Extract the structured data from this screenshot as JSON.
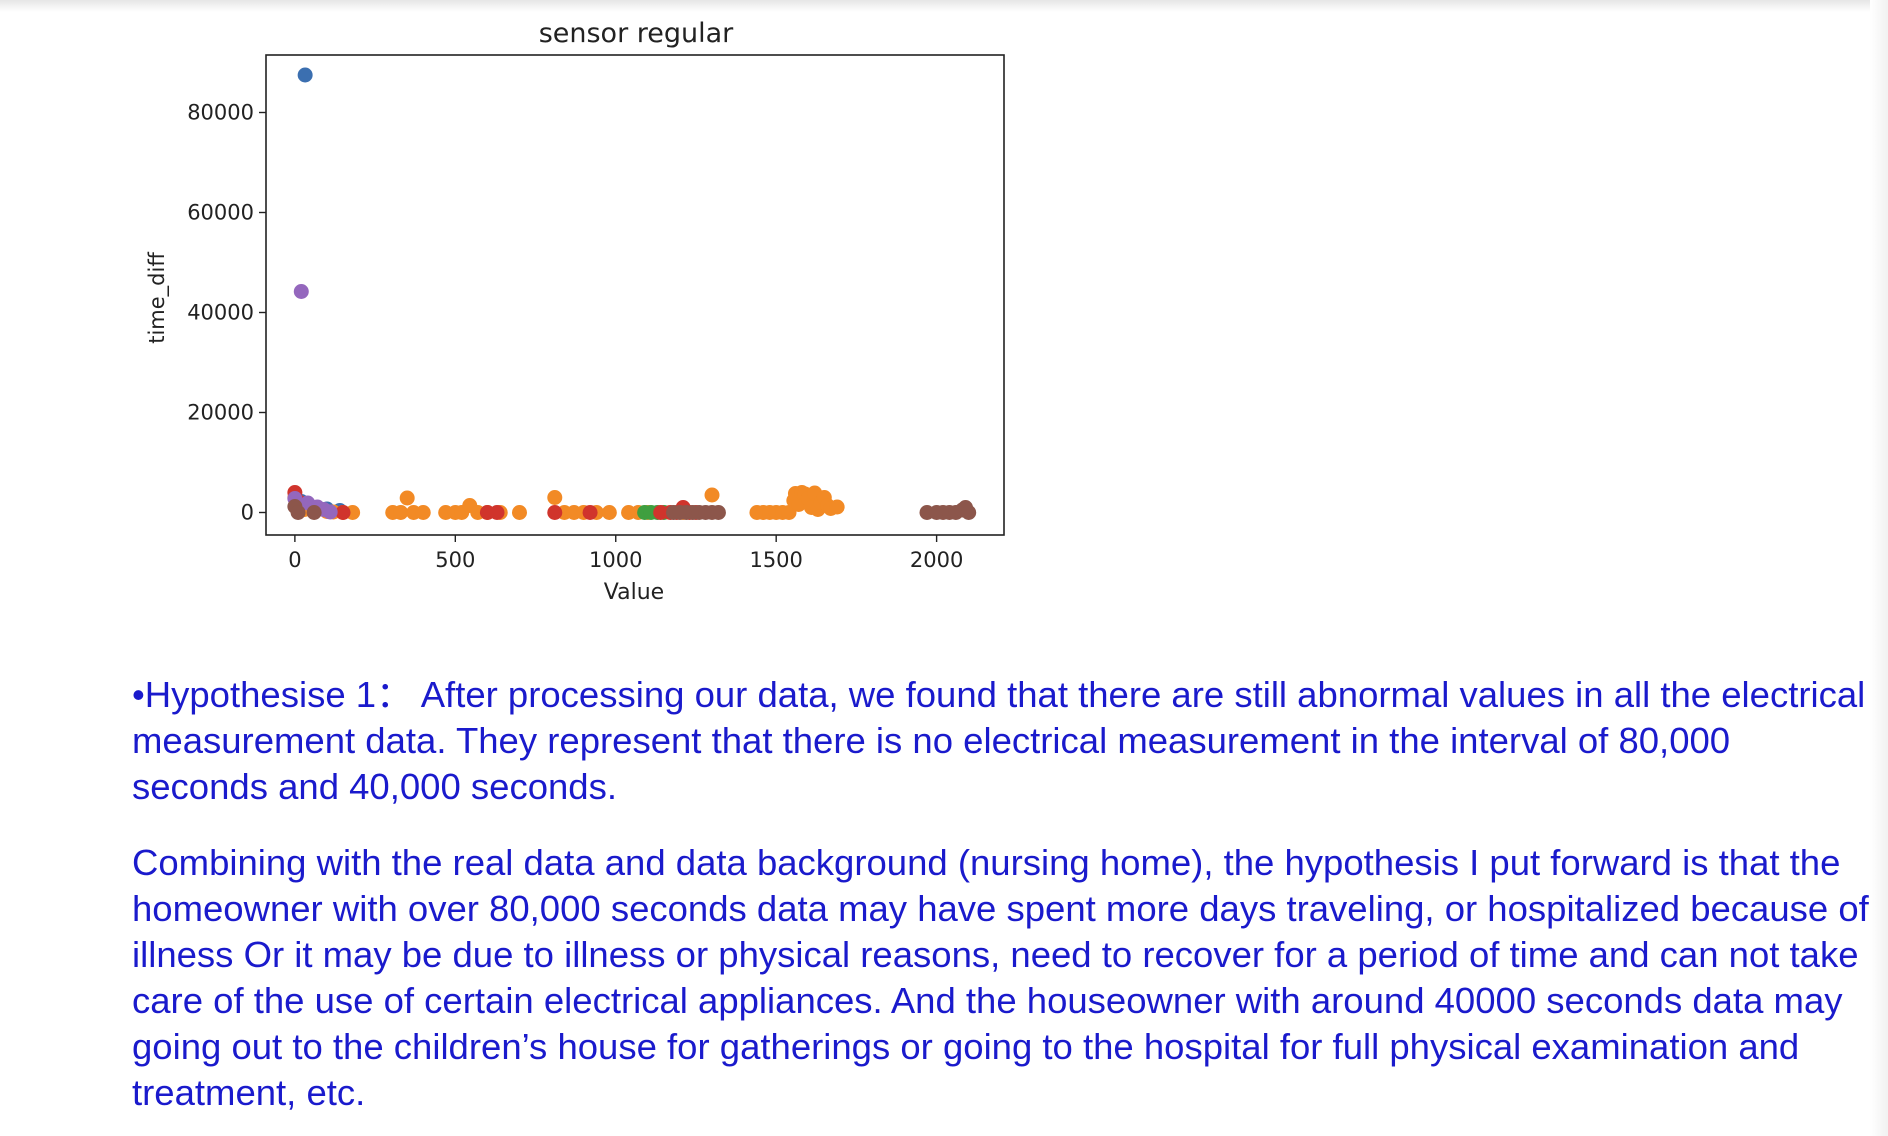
{
  "chart_data": {
    "type": "scatter",
    "title": "sensor regular",
    "xlabel": "Value",
    "ylabel": "time_diff",
    "xlim": [
      -90,
      2210
    ],
    "ylim": [
      -4500,
      91500
    ],
    "xticks": [
      0,
      500,
      1000,
      1500,
      2000
    ],
    "yticks": [
      0,
      20000,
      40000,
      60000,
      80000
    ],
    "xtick_labels": [
      "0",
      "500",
      "1000",
      "1500",
      "2000"
    ],
    "ytick_labels": [
      "0",
      "20000",
      "40000",
      "60000",
      "80000"
    ],
    "grid": false,
    "series": [
      {
        "color": "#3b6fb0",
        "points": [
          [
            32,
            87500
          ],
          [
            20,
            2200
          ],
          [
            60,
            900
          ],
          [
            100,
            700
          ],
          [
            140,
            400
          ],
          [
            10,
            300
          ]
        ]
      },
      {
        "color": "#f28a25",
        "points": [
          [
            0,
            3000
          ],
          [
            30,
            600
          ],
          [
            100,
            200
          ],
          [
            120,
            100
          ],
          [
            150,
            0
          ],
          [
            180,
            0
          ],
          [
            305,
            0
          ],
          [
            330,
            0
          ],
          [
            350,
            2900
          ],
          [
            370,
            0
          ],
          [
            400,
            0
          ],
          [
            470,
            0
          ],
          [
            500,
            0
          ],
          [
            520,
            0
          ],
          [
            545,
            1400
          ],
          [
            570,
            0
          ],
          [
            600,
            0
          ],
          [
            640,
            0
          ],
          [
            700,
            0
          ],
          [
            810,
            3000
          ],
          [
            840,
            0
          ],
          [
            870,
            0
          ],
          [
            900,
            0
          ],
          [
            940,
            0
          ],
          [
            980,
            0
          ],
          [
            1040,
            0
          ],
          [
            1070,
            0
          ],
          [
            1100,
            0
          ],
          [
            1210,
            0
          ],
          [
            1300,
            3500
          ],
          [
            1440,
            0
          ],
          [
            1460,
            0
          ],
          [
            1480,
            0
          ],
          [
            1500,
            0
          ],
          [
            1520,
            0
          ],
          [
            1540,
            0
          ],
          [
            1555,
            2400
          ],
          [
            1560,
            3800
          ],
          [
            1570,
            1600
          ],
          [
            1580,
            4000
          ],
          [
            1590,
            3700
          ],
          [
            1600,
            2800
          ],
          [
            1610,
            1000
          ],
          [
            1620,
            3900
          ],
          [
            1630,
            600
          ],
          [
            1640,
            2000
          ],
          [
            1650,
            3000
          ],
          [
            1660,
            1400
          ],
          [
            1670,
            800
          ],
          [
            1690,
            1100
          ]
        ]
      },
      {
        "color": "#3f9f3f",
        "points": [
          [
            1090,
            0
          ],
          [
            1110,
            0
          ],
          [
            1130,
            0
          ],
          [
            1150,
            0
          ]
        ]
      },
      {
        "color": "#d0342c",
        "points": [
          [
            0,
            4000
          ],
          [
            15,
            2000
          ],
          [
            150,
            0
          ],
          [
            600,
            0
          ],
          [
            630,
            0
          ],
          [
            810,
            0
          ],
          [
            920,
            0
          ],
          [
            1140,
            0
          ],
          [
            1170,
            0
          ],
          [
            1190,
            0
          ],
          [
            1210,
            1000
          ],
          [
            1230,
            0
          ],
          [
            1250,
            0
          ]
        ]
      },
      {
        "color": "#9467bd",
        "points": [
          [
            20,
            44200
          ],
          [
            0,
            2800
          ],
          [
            40,
            1900
          ],
          [
            70,
            1100
          ],
          [
            90,
            600
          ],
          [
            110,
            100
          ]
        ]
      },
      {
        "color": "#8c564b",
        "points": [
          [
            0,
            1200
          ],
          [
            10,
            0
          ],
          [
            60,
            0
          ],
          [
            1180,
            0
          ],
          [
            1200,
            0
          ],
          [
            1220,
            0
          ],
          [
            1240,
            0
          ],
          [
            1260,
            0
          ],
          [
            1280,
            0
          ],
          [
            1300,
            0
          ],
          [
            1320,
            0
          ],
          [
            1970,
            0
          ],
          [
            2000,
            0
          ],
          [
            2020,
            0
          ],
          [
            2040,
            0
          ],
          [
            2060,
            0
          ],
          [
            2080,
            500
          ],
          [
            2090,
            1000
          ],
          [
            2100,
            0
          ]
        ]
      }
    ]
  },
  "notes": {
    "para1": "•Hypothesise 1：  After processing our data, we found that there are still abnormal values in all the electrical measurement data. They represent that there is no electrical measurement in the interval of 80,000 seconds and 40,000 seconds.",
    "para2": "Combining with the real data and data background (nursing home), the hypothesis I put forward is that the homeowner with over 80,000 seconds data may have spent more days traveling, or hospitalized because of illness Or it may be due to illness or physical reasons, need to recover for a period of time and can not take care of the use of certain electrical appliances. And the houseowner with around 40000 seconds data may going out to the children’s house for gatherings or going to the hospital for full physical examination and treatment, etc."
  }
}
